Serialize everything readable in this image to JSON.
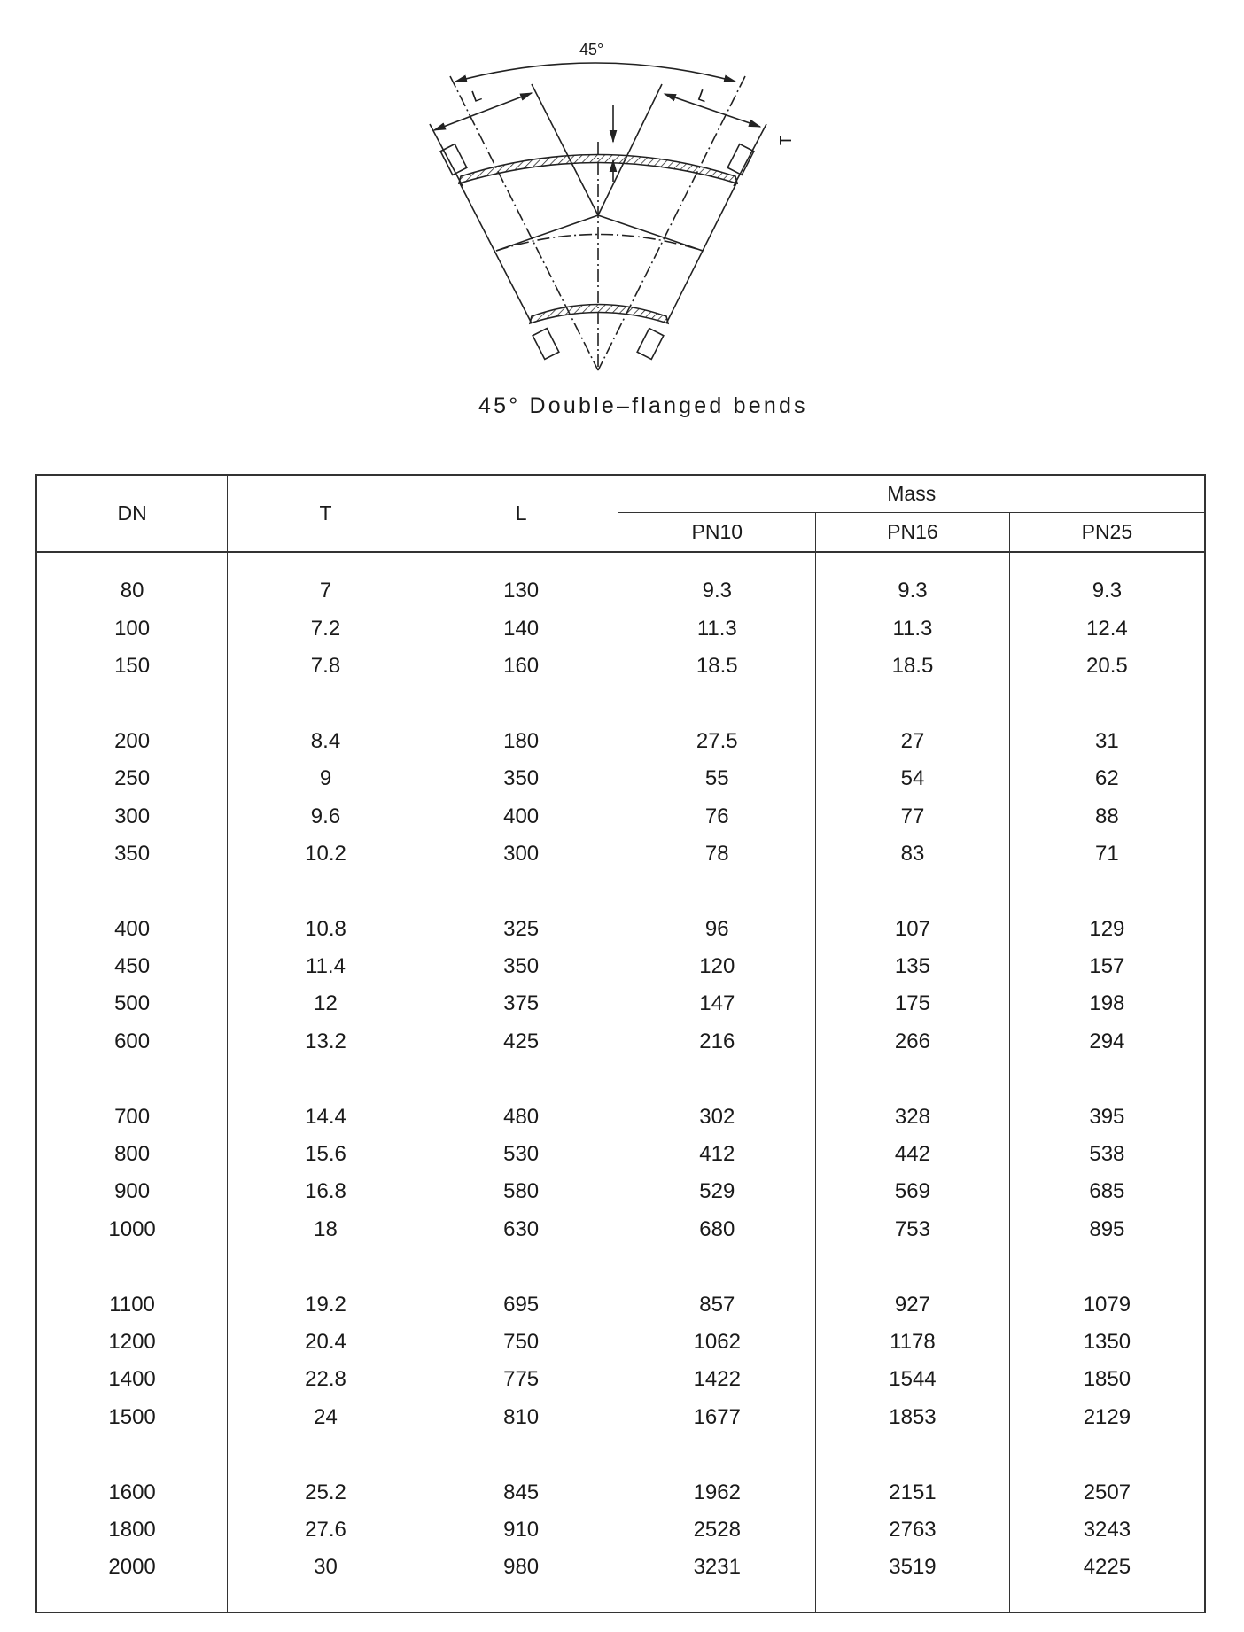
{
  "figure": {
    "angle_label": "45°",
    "dimension_labels": {
      "length": "L",
      "thickness": "T"
    },
    "caption": "45° Double–flanged bends"
  },
  "table": {
    "headers": {
      "dn": "DN",
      "t": "T",
      "l": "L",
      "mass": "Mass",
      "pn10": "PN10",
      "pn16": "PN16",
      "pn25": "PN25"
    },
    "groups": [
      [
        [
          "80",
          "7",
          "130",
          "9.3",
          "9.3",
          "9.3"
        ],
        [
          "100",
          "7.2",
          "140",
          "11.3",
          "11.3",
          "12.4"
        ],
        [
          "150",
          "7.8",
          "160",
          "18.5",
          "18.5",
          "20.5"
        ]
      ],
      [
        [
          "200",
          "8.4",
          "180",
          "27.5",
          "27",
          "31"
        ],
        [
          "250",
          "9",
          "350",
          "55",
          "54",
          "62"
        ],
        [
          "300",
          "9.6",
          "400",
          "76",
          "77",
          "88"
        ],
        [
          "350",
          "10.2",
          "300",
          "78",
          "83",
          "71"
        ]
      ],
      [
        [
          "400",
          "10.8",
          "325",
          "96",
          "107",
          "129"
        ],
        [
          "450",
          "11.4",
          "350",
          "120",
          "135",
          "157"
        ],
        [
          "500",
          "12",
          "375",
          "147",
          "175",
          "198"
        ],
        [
          "600",
          "13.2",
          "425",
          "216",
          "266",
          "294"
        ]
      ],
      [
        [
          "700",
          "14.4",
          "480",
          "302",
          "328",
          "395"
        ],
        [
          "800",
          "15.6",
          "530",
          "412",
          "442",
          "538"
        ],
        [
          "900",
          "16.8",
          "580",
          "529",
          "569",
          "685"
        ],
        [
          "1000",
          "18",
          "630",
          "680",
          "753",
          "895"
        ]
      ],
      [
        [
          "1100",
          "19.2",
          "695",
          "857",
          "927",
          "1079"
        ],
        [
          "1200",
          "20.4",
          "750",
          "1062",
          "1178",
          "1350"
        ],
        [
          "1400",
          "22.8",
          "775",
          "1422",
          "1544",
          "1850"
        ],
        [
          "1500",
          "24",
          "810",
          "1677",
          "1853",
          "2129"
        ]
      ],
      [
        [
          "1600",
          "25.2",
          "845",
          "1962",
          "2151",
          "2507"
        ],
        [
          "1800",
          "27.6",
          "910",
          "2528",
          "2763",
          "3243"
        ],
        [
          "2000",
          "30",
          "980",
          "3231",
          "3519",
          "4225"
        ]
      ]
    ]
  }
}
